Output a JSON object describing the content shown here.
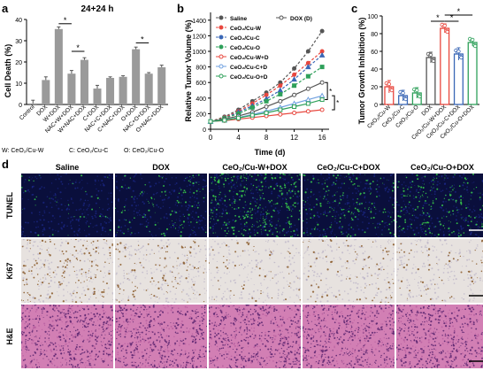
{
  "panel_labels": {
    "a": "a",
    "b": "b",
    "c": "c",
    "d": "d"
  },
  "chart_data": [
    {
      "id": "a",
      "type": "bar",
      "title": "24+24 h",
      "ylabel": "Cell Death (%)",
      "ylim": [
        0,
        40
      ],
      "yticks": [
        "0",
        "10",
        "20",
        "30",
        "40"
      ],
      "categories": [
        "Control",
        "DOX",
        "W+DOX",
        "NAC+W+DOX",
        "W+NAC+DOX",
        "C+DOX",
        "NAC+C+DOX",
        "C+NAC+DOX",
        "O+DOX",
        "NAC+O+DOX",
        "O+NAC+DOX"
      ],
      "values": [
        0.5,
        11.5,
        35.5,
        14.5,
        21,
        7.5,
        12.5,
        13,
        26,
        14.5,
        17.5
      ],
      "errors": [
        1.5,
        1.5,
        1,
        1.5,
        1,
        1.5,
        0.5,
        0.5,
        1,
        0.5,
        1
      ],
      "significance": [
        "*",
        "*",
        "*"
      ],
      "bar_color": "#9a9a9a",
      "legend_notes": [
        "W: CeO₂/Cu-W",
        "C: CeO₂/Cu-C",
        "O: CeO₂/Cu-O"
      ]
    },
    {
      "id": "b",
      "type": "line",
      "ylabel": "Relative Tumor Volume (%)",
      "xlabel": "Time (d)",
      "ylim": [
        0,
        1500
      ],
      "yticks": [
        "0",
        "200",
        "400",
        "600",
        "800",
        "1000",
        "1200",
        "1400"
      ],
      "xlim": [
        0,
        17
      ],
      "xticks": [
        "0",
        "4",
        "8",
        "12",
        "16"
      ],
      "x": [
        0,
        2,
        4,
        6,
        8,
        10,
        12,
        14,
        16
      ],
      "series": [
        {
          "name": "Saline",
          "color": "#555555",
          "values": [
            100,
            160,
            250,
            360,
            470,
            600,
            780,
            1000,
            1260
          ]
        },
        {
          "name": "CeO₂/Cu-W",
          "color": "#e8473e",
          "values": [
            100,
            150,
            230,
            330,
            440,
            560,
            700,
            850,
            1000
          ]
        },
        {
          "name": "CeO₂/Cu-C",
          "color": "#3a67b6",
          "values": [
            100,
            140,
            220,
            300,
            390,
            500,
            640,
            800,
            950
          ]
        },
        {
          "name": "CeO₂/Cu-O",
          "color": "#2ea05a",
          "values": [
            100,
            140,
            200,
            280,
            360,
            450,
            560,
            680,
            800
          ]
        },
        {
          "name": "DOX (D)",
          "color": "#555555",
          "values": [
            100,
            130,
            170,
            220,
            290,
            360,
            440,
            520,
            600
          ]
        },
        {
          "name": "CeO₂/Cu-W+D",
          "color": "#e8473e",
          "values": [
            100,
            110,
            130,
            150,
            170,
            190,
            210,
            230,
            250
          ]
        },
        {
          "name": "CeO₂/Cu-C+D",
          "color": "#6fa0e0",
          "values": [
            100,
            115,
            150,
            190,
            230,
            280,
            330,
            380,
            430
          ]
        },
        {
          "name": "CeO₂/Cu-O+D",
          "color": "#2ea05a",
          "values": [
            100,
            115,
            145,
            180,
            210,
            250,
            290,
            330,
            380
          ]
        }
      ],
      "significance": [
        "*",
        "*"
      ]
    },
    {
      "id": "c",
      "type": "bar",
      "ylabel": "Tumor Growth Inhibition (%)",
      "ylim": [
        0,
        100
      ],
      "yticks": [
        "0",
        "20",
        "40",
        "60",
        "80",
        "100"
      ],
      "categories": [
        "CeO₂/Cu-W",
        "CeO₂/Cu-C",
        "CeO₂/Cu-O",
        "DOX",
        "CeO₂/Cu-W+DOX",
        "CeO₂/Cu-C+DOX",
        "CeO₂/Cu-O+DOX"
      ],
      "values": [
        20,
        10,
        13,
        53,
        86,
        57,
        70
      ],
      "errors": [
        7,
        6,
        6,
        6,
        5,
        7,
        4
      ],
      "colors": [
        "#e8473e",
        "#3a67b6",
        "#2ea05a",
        "#555555",
        "#e8473e",
        "#3a67b6",
        "#2ea05a"
      ],
      "significance": [
        "*",
        "*",
        "*"
      ]
    }
  ],
  "micro_panel": {
    "columns": [
      "Saline",
      "DOX",
      "CeO₂/Cu-W+DOX",
      "CeO₂/Cu-C+DOX",
      "CeO₂/Cu-O+DOX"
    ],
    "rows": [
      "TUNEL",
      "Ki67",
      "H&E"
    ],
    "tunel_density": [
      0.05,
      0.25,
      0.9,
      0.45,
      0.5
    ],
    "ki67_density": [
      0.55,
      0.35,
      0.1,
      0.2,
      0.15
    ],
    "colors": {
      "tunel_bg": "#0a0f3c",
      "tunel_fg": "#3ad04a",
      "ihc_bg": "#e7e2df",
      "ihc_fg": "#8a5a2a",
      "he_bg": "#d27fb4",
      "he_fg": "#5a2470"
    }
  }
}
